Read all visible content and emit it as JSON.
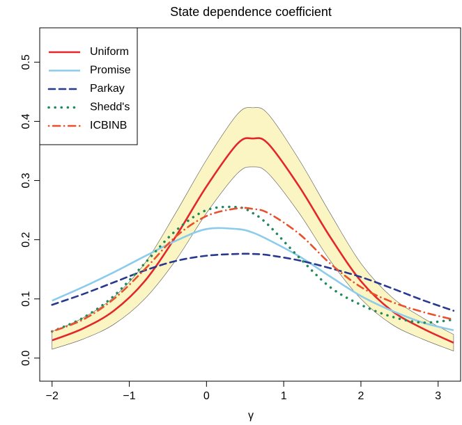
{
  "chart_data": {
    "type": "line",
    "title": "State dependence coefficient",
    "xlabel": "γ",
    "x": [
      -2,
      -1.6,
      -1.2,
      -0.8,
      -0.4,
      0,
      0.4,
      0.6,
      0.8,
      1.2,
      1.6,
      2,
      2.4,
      2.8,
      3.2
    ],
    "band": {
      "color": "#fbf5c3",
      "upper": [
        0.045,
        0.068,
        0.103,
        0.16,
        0.245,
        0.335,
        0.412,
        0.423,
        0.412,
        0.335,
        0.245,
        0.16,
        0.103,
        0.068,
        0.04
      ],
      "lower": [
        0.015,
        0.032,
        0.057,
        0.1,
        0.165,
        0.245,
        0.312,
        0.323,
        0.312,
        0.245,
        0.165,
        0.1,
        0.057,
        0.032,
        0.012
      ]
    },
    "series": [
      {
        "name": "Uniform",
        "color": "#e3262b",
        "linestyle": "solid",
        "values": [
          0.03,
          0.05,
          0.08,
          0.13,
          0.205,
          0.29,
          0.362,
          0.371,
          0.362,
          0.29,
          0.205,
          0.13,
          0.08,
          0.05,
          0.026
        ]
      },
      {
        "name": "Promise",
        "color": "#8ccbec",
        "linestyle": "solid",
        "values": [
          0.097,
          0.12,
          0.145,
          0.172,
          0.198,
          0.218,
          0.218,
          0.212,
          0.2,
          0.172,
          0.138,
          0.105,
          0.08,
          0.06,
          0.047
        ]
      },
      {
        "name": "Parkay",
        "color": "#26398f",
        "linestyle": "dashed",
        "values": [
          0.09,
          0.108,
          0.128,
          0.148,
          0.164,
          0.173,
          0.176,
          0.176,
          0.174,
          0.165,
          0.152,
          0.137,
          0.118,
          0.098,
          0.08
        ]
      },
      {
        "name": "Shedd's",
        "color": "#1f8a5c",
        "linestyle": "dotted",
        "values": [
          0.045,
          0.068,
          0.105,
          0.16,
          0.215,
          0.25,
          0.255,
          0.245,
          0.225,
          0.17,
          0.12,
          0.09,
          0.07,
          0.06,
          0.065
        ]
      },
      {
        "name": "ICBINB",
        "color": "#e8502d",
        "linestyle": "dotdash",
        "values": [
          0.045,
          0.065,
          0.1,
          0.15,
          0.205,
          0.24,
          0.253,
          0.252,
          0.245,
          0.21,
          0.16,
          0.12,
          0.095,
          0.078,
          0.065
        ]
      }
    ],
    "xlim": [
      -2.16,
      3.3
    ],
    "ylim": [
      -0.039,
      0.558
    ],
    "xticks": [
      {
        "value": -2,
        "label": "−2"
      },
      {
        "value": -1,
        "label": "−1"
      },
      0,
      1,
      2,
      3
    ],
    "yticks": [
      {
        "value": 0,
        "label": "0.0"
      },
      0.1,
      0.2,
      0.3,
      0.4,
      0.5
    ],
    "legend": "topleft"
  }
}
